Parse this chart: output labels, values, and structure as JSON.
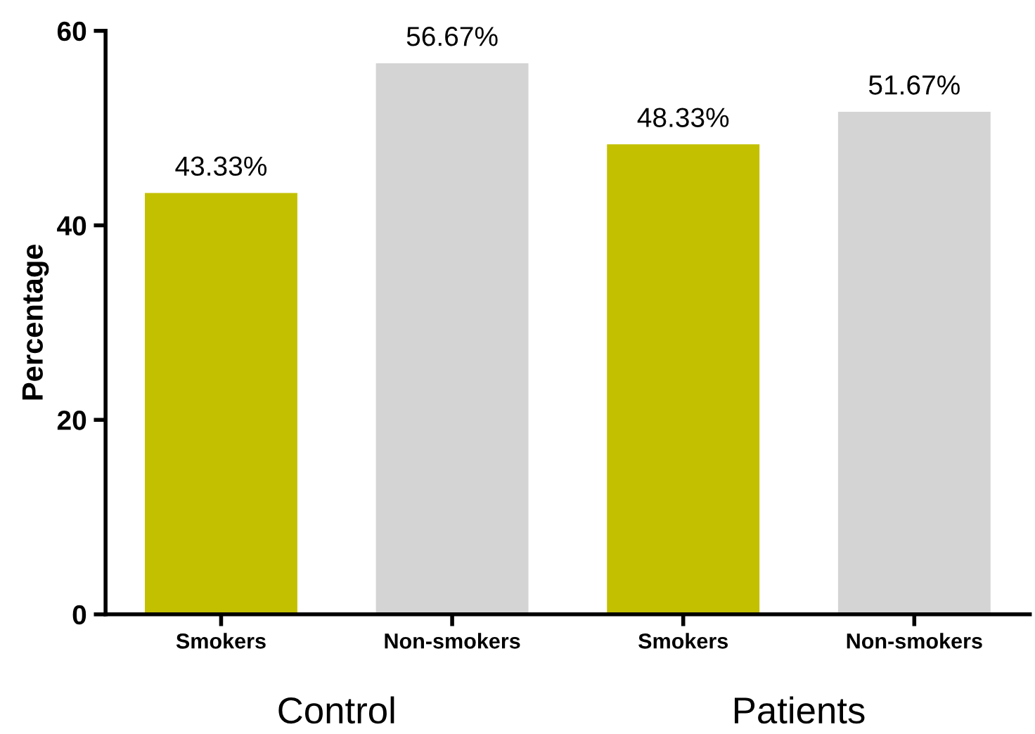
{
  "chart_data": {
    "type": "bar",
    "ylabel": "Percentage",
    "categories": [
      "Smokers",
      "Non-smokers",
      "Smokers",
      "Non-smokers"
    ],
    "values": [
      43.33,
      56.67,
      48.33,
      51.67
    ],
    "colors": [
      "#c3c000",
      "#d4d4d4",
      "#c3c000",
      "#d4d4d4"
    ],
    "value_labels": [
      "43.33%",
      "56.67%",
      "48.33%",
      "51.67%"
    ],
    "ylim": [
      0,
      60
    ],
    "yticks": [
      0,
      20,
      40,
      60
    ],
    "grid": false,
    "annotations": [
      "Control",
      "Patients"
    ]
  }
}
